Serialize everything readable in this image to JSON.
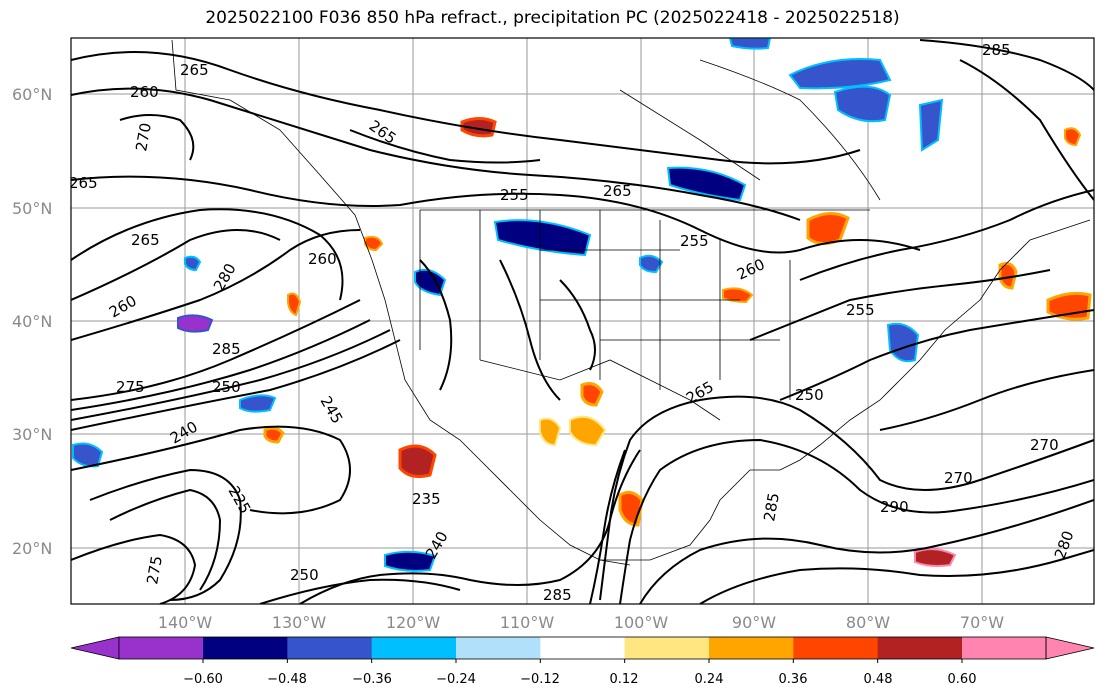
{
  "title": "2025022100 F036 850 hPa refract., precipitation PC (2025022418 - 2025022518)",
  "lat_labels": [
    "60°N",
    "50°N",
    "40°N",
    "30°N",
    "20°N"
  ],
  "lon_labels": [
    "140°W",
    "130°W",
    "120°W",
    "110°W",
    "100°W",
    "90°W",
    "80°W",
    "70°W"
  ],
  "contour_labels": [
    "265",
    "260",
    "270",
    "265",
    "265",
    "255",
    "265",
    "255",
    "260",
    "255",
    "265",
    "260",
    "280",
    "260",
    "285",
    "275",
    "250",
    "245",
    "240",
    "235",
    "265",
    "250",
    "270",
    "270",
    "285",
    "290",
    "280",
    "275",
    "250",
    "240",
    "225",
    "285",
    "285"
  ],
  "colorbar": {
    "ticks": [
      "−0.60",
      "−0.48",
      "−0.36",
      "−0.24",
      "−0.12",
      "0.12",
      "0.24",
      "0.36",
      "0.48",
      "0.60"
    ],
    "colors": {
      "under": "#9932cc",
      "bins": [
        "#000080",
        "#3655cc",
        "#00bfff",
        "#b0e0fa",
        "#ffffff",
        "#ffe680",
        "#ffa500",
        "#ff4500",
        "#b22222"
      ],
      "over": "#ff85b0"
    }
  },
  "map": {
    "land_background": "#ffffff",
    "contour_color": "#000000",
    "grid_color": "#9a9a9a"
  }
}
